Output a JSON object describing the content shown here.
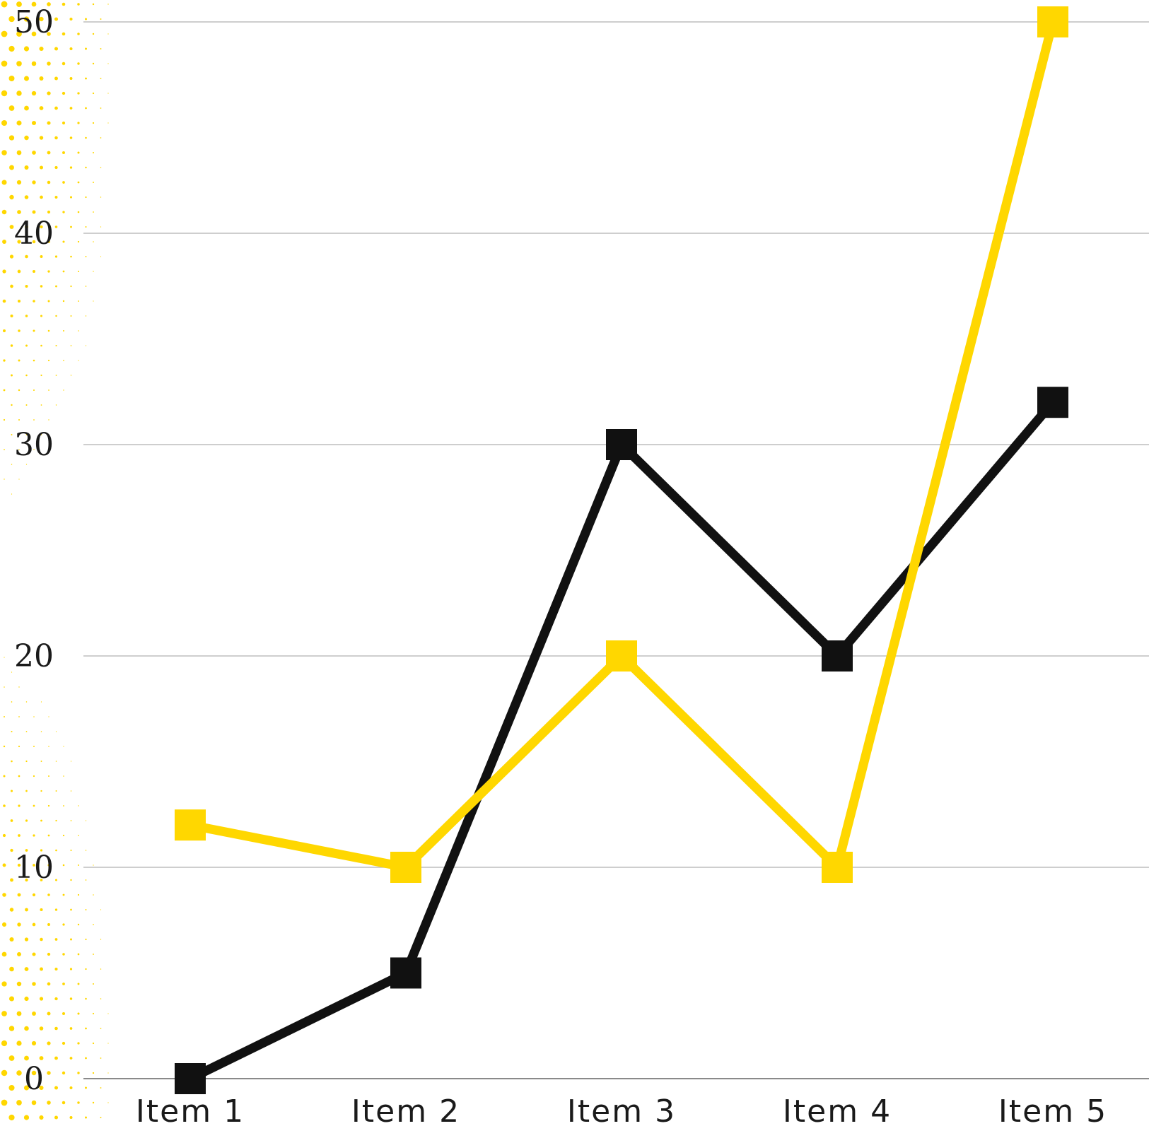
{
  "colors": {
    "series_black": "#111111",
    "series_yellow": "#FFD700",
    "grid": "#bdbdbd",
    "axis": "#8a8a8a",
    "dot_pattern": "#FFD700"
  },
  "chart_data": {
    "type": "line",
    "categories": [
      "Item 1",
      "Item 2",
      "Item 3",
      "Item 4",
      "Item 5"
    ],
    "series": [
      {
        "values": [
          0,
          5,
          30,
          20,
          32
        ],
        "color": "#111111",
        "marker": "square"
      },
      {
        "values": [
          12,
          10,
          20,
          10,
          50
        ],
        "color": "#FFD700",
        "marker": "square"
      }
    ],
    "y_ticks": [
      "0",
      "10",
      "20",
      "30",
      "40",
      "50"
    ],
    "ylim": [
      0,
      50
    ],
    "grid": true,
    "legend": "none",
    "title": "",
    "xlabel": "",
    "ylabel": ""
  }
}
